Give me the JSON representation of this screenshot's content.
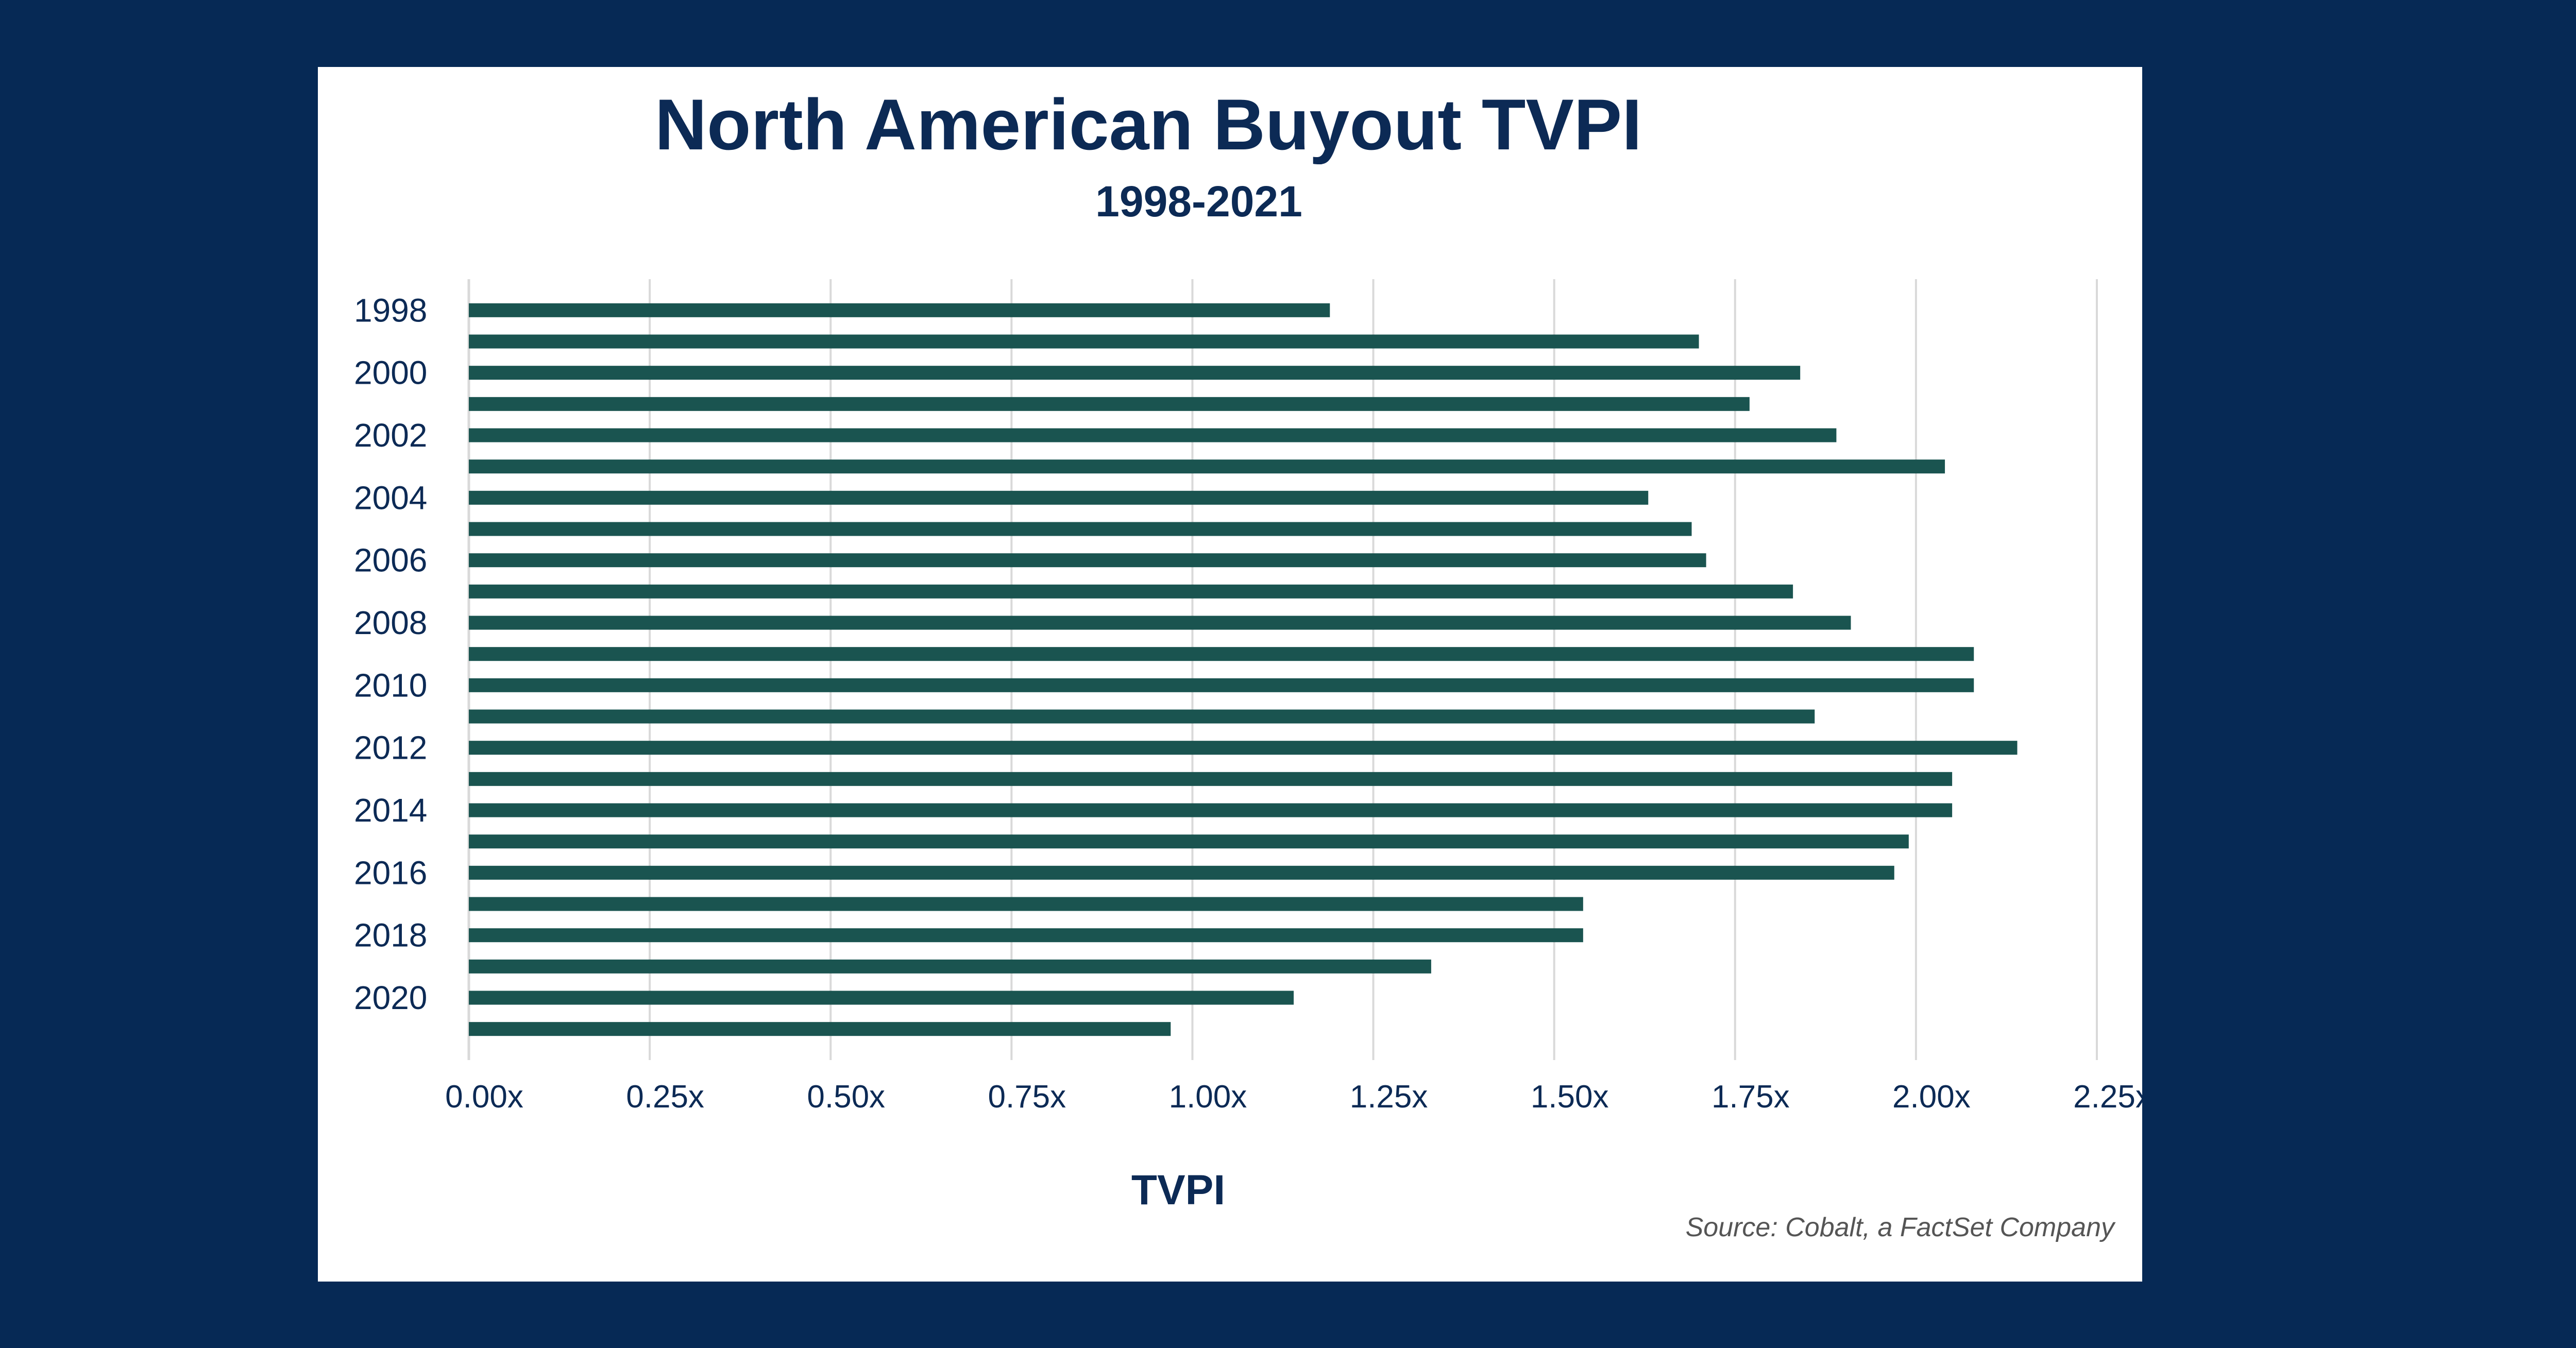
{
  "chart_data": {
    "type": "bar",
    "orientation": "horizontal",
    "title": "North American Buyout TVPI",
    "subtitle": "1998-2021",
    "xlabel": "TVPI",
    "ylabel": "",
    "source": "Source: Cobalt, a FactSet Company",
    "xlim": [
      0,
      2.25
    ],
    "x_ticks": [
      "0.00x",
      "0.25x",
      "0.50x",
      "0.75x",
      "1.00x",
      "1.25x",
      "1.50x",
      "1.75x",
      "2.00x",
      "2.25x"
    ],
    "grid": "vertical",
    "categories": [
      "1998",
      "1999",
      "2000",
      "2001",
      "2002",
      "2003",
      "2004",
      "2005",
      "2006",
      "2007",
      "2008",
      "2009",
      "2010",
      "2011",
      "2012",
      "2013",
      "2014",
      "2015",
      "2016",
      "2017",
      "2018",
      "2019",
      "2020",
      "2021"
    ],
    "category_labels_shown": [
      "1998",
      "",
      "2000",
      "",
      "2002",
      "",
      "2004",
      "",
      "2006",
      "",
      "2008",
      "",
      "2010",
      "",
      "2012",
      "",
      "2014",
      "",
      "2016",
      "",
      "2018",
      "",
      "2020",
      ""
    ],
    "values": [
      1.19,
      1.7,
      1.84,
      1.77,
      1.89,
      2.04,
      1.63,
      1.69,
      1.71,
      1.83,
      1.91,
      2.08,
      2.08,
      1.86,
      2.14,
      2.05,
      2.05,
      1.99,
      1.97,
      1.54,
      1.54,
      1.33,
      1.14,
      0.97
    ],
    "colors": {
      "bar": "#1a5450",
      "grid": "#d9d9d9",
      "title": "#0c2a55",
      "background": "#062955",
      "card": "#ffffff"
    }
  }
}
